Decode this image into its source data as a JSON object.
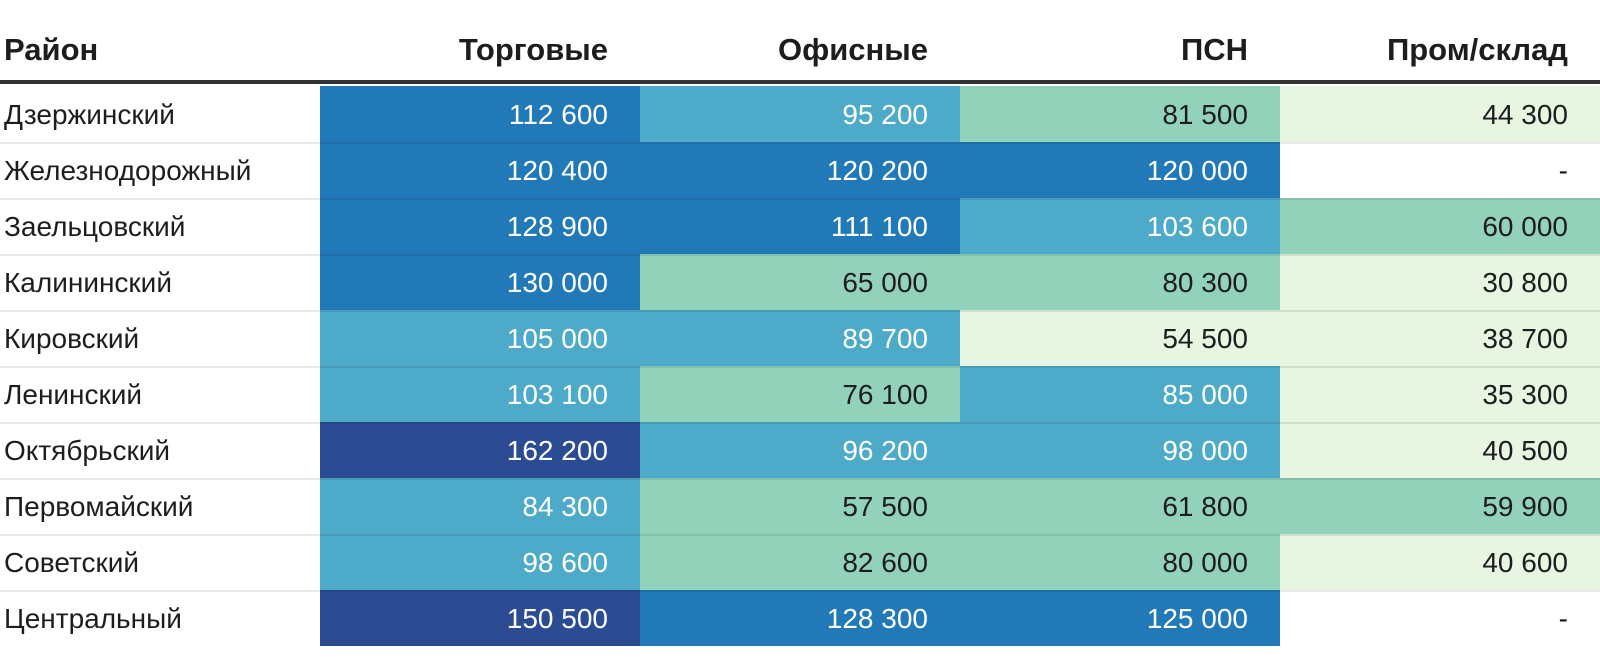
{
  "palette": {
    "navy": "#2b4b93",
    "blue": "#2279b8",
    "lightblue": "#4daac9",
    "teal": "#92d1ba",
    "lightgreen": "#e7f5e1",
    "empty": "#ffffff",
    "dark_text": "#1d1d1d",
    "light_text": "#ffffff",
    "header_border": "#333333"
  },
  "table": {
    "headers": [
      "Район",
      "Торговые",
      "Офисные",
      "ПСН",
      "Пром/склад"
    ],
    "rows": [
      {
        "district": "Дзержинский",
        "cells": [
          {
            "text": "112 600",
            "tone": "blue"
          },
          {
            "text": "95 200",
            "tone": "lightblue"
          },
          {
            "text": "81 500",
            "tone": "teal"
          },
          {
            "text": "44 300",
            "tone": "lightgreen"
          }
        ]
      },
      {
        "district": "Железнодорожный",
        "cells": [
          {
            "text": "120 400",
            "tone": "blue"
          },
          {
            "text": "120 200",
            "tone": "blue"
          },
          {
            "text": "120 000",
            "tone": "blue"
          },
          {
            "text": "-",
            "tone": "empty"
          }
        ]
      },
      {
        "district": "Заельцовский",
        "cells": [
          {
            "text": "128 900",
            "tone": "blue"
          },
          {
            "text": "111 100",
            "tone": "blue"
          },
          {
            "text": "103 600",
            "tone": "lightblue"
          },
          {
            "text": "60 000",
            "tone": "teal"
          }
        ]
      },
      {
        "district": "Калининский",
        "cells": [
          {
            "text": "130 000",
            "tone": "blue"
          },
          {
            "text": "65 000",
            "tone": "teal"
          },
          {
            "text": "80 300",
            "tone": "teal"
          },
          {
            "text": "30 800",
            "tone": "lightgreen"
          }
        ]
      },
      {
        "district": "Кировский",
        "cells": [
          {
            "text": "105 000",
            "tone": "lightblue"
          },
          {
            "text": "89 700",
            "tone": "lightblue"
          },
          {
            "text": "54 500",
            "tone": "lightgreen"
          },
          {
            "text": "38 700",
            "tone": "lightgreen"
          }
        ]
      },
      {
        "district": "Ленинский",
        "cells": [
          {
            "text": "103 100",
            "tone": "lightblue"
          },
          {
            "text": "76 100",
            "tone": "teal"
          },
          {
            "text": "85 000",
            "tone": "lightblue"
          },
          {
            "text": "35 300",
            "tone": "lightgreen"
          }
        ]
      },
      {
        "district": "Октябрьский",
        "cells": [
          {
            "text": "162 200",
            "tone": "navy"
          },
          {
            "text": "96 200",
            "tone": "lightblue"
          },
          {
            "text": "98 000",
            "tone": "lightblue"
          },
          {
            "text": "40 500",
            "tone": "lightgreen"
          }
        ]
      },
      {
        "district": "Первомайский",
        "cells": [
          {
            "text": "84 300",
            "tone": "lightblue"
          },
          {
            "text": "57 500",
            "tone": "teal"
          },
          {
            "text": "61 800",
            "tone": "teal"
          },
          {
            "text": "59 900",
            "tone": "teal"
          }
        ]
      },
      {
        "district": "Советский",
        "cells": [
          {
            "text": "98 600",
            "tone": "lightblue"
          },
          {
            "text": "82 600",
            "tone": "teal"
          },
          {
            "text": "80 000",
            "tone": "teal"
          },
          {
            "text": "40 600",
            "tone": "lightgreen"
          }
        ]
      },
      {
        "district": "Центральный",
        "cells": [
          {
            "text": "150 500",
            "tone": "navy"
          },
          {
            "text": "128 300",
            "tone": "blue"
          },
          {
            "text": "125 000",
            "tone": "blue"
          },
          {
            "text": "-",
            "tone": "empty"
          }
        ]
      }
    ]
  },
  "chart_data": {
    "type": "heatmap",
    "title": "",
    "row_label": "Район",
    "columns": [
      "Торговые",
      "Офисные",
      "ПСН",
      "Пром/склад"
    ],
    "rows": [
      "Дзержинский",
      "Железнодорожный",
      "Заельцовский",
      "Калининский",
      "Кировский",
      "Ленинский",
      "Октябрьский",
      "Первомайский",
      "Советский",
      "Центральный"
    ],
    "values": [
      [
        112600,
        95200,
        81500,
        44300
      ],
      [
        120400,
        120200,
        120000,
        null
      ],
      [
        128900,
        111100,
        103600,
        60000
      ],
      [
        130000,
        65000,
        80300,
        30800
      ],
      [
        105000,
        89700,
        54500,
        38700
      ],
      [
        103100,
        76100,
        85000,
        35300
      ],
      [
        162200,
        96200,
        98000,
        40500
      ],
      [
        84300,
        57500,
        61800,
        59900
      ],
      [
        98600,
        82600,
        80000,
        40600
      ],
      [
        150500,
        128300,
        125000,
        null
      ]
    ],
    "legend_position": "none",
    "color_scale": "high values dark blue -> blue -> light blue -> teal green -> pale green for low values; blank cells white"
  }
}
